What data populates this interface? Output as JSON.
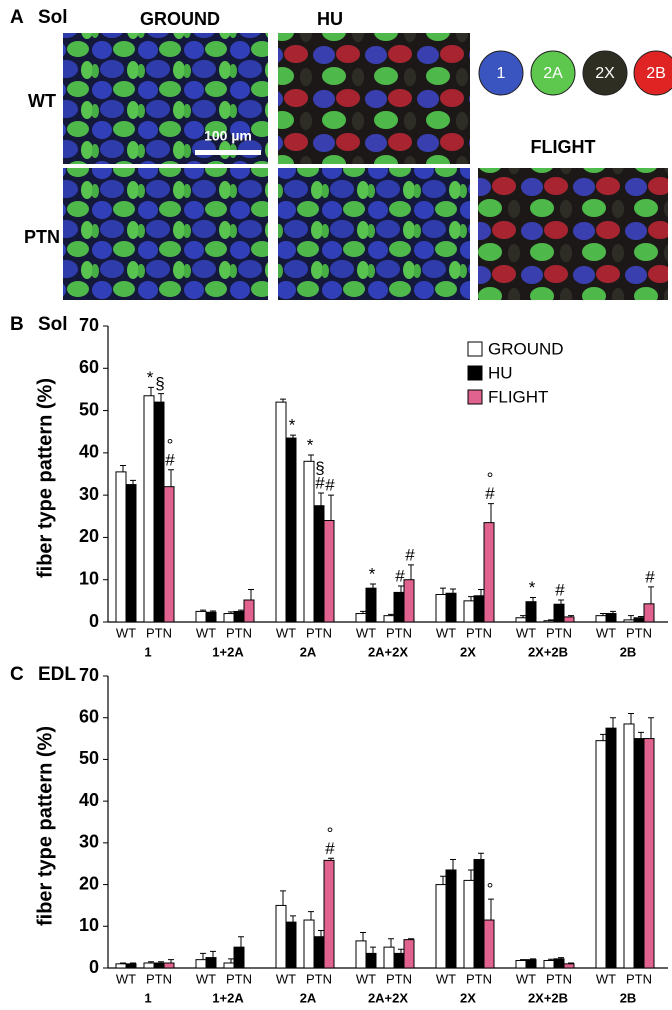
{
  "panel_a": {
    "letter": "A",
    "muscle": "Sol",
    "columns": [
      "GROUND",
      "HU",
      "FLIGHT"
    ],
    "rows": [
      "WT",
      "PTN"
    ],
    "scale_bar": "100 µm",
    "fiber_types": [
      {
        "label": "1",
        "color": "#3b55c0"
      },
      {
        "label": "2A",
        "color": "#5ec84e"
      },
      {
        "label": "2X",
        "color": "#2e2e22"
      },
      {
        "label": "2B",
        "color": "#e02424"
      }
    ]
  },
  "chart_data": [
    {
      "type": "bar",
      "panel": "B",
      "title": "Sol",
      "ylabel": "fiber type pattern (%)",
      "groups": [
        "1",
        "1+2A",
        "2A",
        "2A+2X",
        "2X",
        "2X+2B",
        "2B"
      ],
      "categories": [
        "WT",
        "PTN",
        "WT",
        "PTN",
        "WT",
        "PTN",
        "WT",
        "PTN",
        "WT",
        "PTN",
        "WT",
        "PTN",
        "WT",
        "PTN"
      ],
      "ylim": [
        0,
        70
      ],
      "yticks": [
        0,
        10,
        20,
        30,
        40,
        50,
        60,
        70
      ],
      "legend": "upper right",
      "series": [
        {
          "name": "GROUND",
          "color": "#ffffff",
          "values": [
            35.5,
            53.5,
            2.5,
            2,
            52,
            38,
            2,
            1.5,
            6.5,
            5,
            1,
            0.3,
            1.5,
            0.5
          ],
          "errors": [
            1.5,
            2,
            0.3,
            0.4,
            0.7,
            1.5,
            0.5,
            0.3,
            1.5,
            1,
            0.5,
            0.2,
            0.5,
            1
          ],
          "annotations": [
            null,
            [
              "*"
            ],
            null,
            null,
            null,
            [
              "*"
            ],
            null,
            null,
            null,
            null,
            null,
            null,
            null,
            null
          ]
        },
        {
          "name": "HU",
          "color": "#000000",
          "values": [
            32.5,
            52,
            2.3,
            2.5,
            43.5,
            27.5,
            8,
            7,
            6.8,
            6.2,
            4.8,
            4.2,
            2,
            1
          ],
          "errors": [
            1,
            2,
            0.3,
            0.3,
            0.7,
            3,
            1,
            1.5,
            1,
            1.5,
            1,
            1,
            0.5,
            0.3
          ],
          "annotations": [
            null,
            [
              "§"
            ],
            null,
            null,
            [
              "*"
            ],
            [
              "#",
              "§"
            ],
            [
              "*"
            ],
            [
              "#"
            ],
            null,
            null,
            [
              "*"
            ],
            [
              "#"
            ],
            null,
            null
          ]
        },
        {
          "name": "FLIGHT",
          "color": "#e2628f",
          "values": [
            null,
            32,
            null,
            5.2,
            null,
            24,
            null,
            10,
            null,
            23.5,
            null,
            1.2,
            null,
            4.3
          ],
          "errors": [
            null,
            4,
            null,
            2.5,
            null,
            6,
            null,
            3.5,
            null,
            4.5,
            null,
            0.3,
            null,
            4
          ],
          "annotations": [
            null,
            [
              "#",
              "°"
            ],
            null,
            null,
            null,
            [
              "#"
            ],
            null,
            [
              "#"
            ],
            null,
            [
              "#",
              "°"
            ],
            null,
            null,
            null,
            [
              "#"
            ]
          ]
        }
      ]
    },
    {
      "type": "bar",
      "panel": "C",
      "title": "EDL",
      "ylabel": "fiber type pattern (%)",
      "groups": [
        "1",
        "1+2A",
        "2A",
        "2A+2X",
        "2X",
        "2X+2B",
        "2B"
      ],
      "categories": [
        "WT",
        "PTN",
        "WT",
        "PTN",
        "WT",
        "PTN",
        "WT",
        "PTN",
        "WT",
        "PTN",
        "WT",
        "PTN",
        "WT",
        "PTN"
      ],
      "ylim": [
        0,
        70
      ],
      "yticks": [
        0,
        10,
        20,
        30,
        40,
        50,
        60,
        70
      ],
      "series": [
        {
          "name": "GROUND",
          "color": "#ffffff",
          "values": [
            1,
            1.2,
            2,
            1.2,
            15,
            11.5,
            6.5,
            5,
            20,
            21,
            1.8,
            1.8,
            54.5,
            58.5
          ],
          "errors": [
            0.2,
            0.3,
            1.5,
            1,
            3.5,
            2,
            2,
            2,
            2,
            2.5,
            0.2,
            0.3,
            1.5,
            2.5
          ],
          "annotations": [
            null,
            null,
            null,
            null,
            null,
            null,
            null,
            null,
            null,
            null,
            null,
            null,
            null,
            null
          ]
        },
        {
          "name": "HU",
          "color": "#000000",
          "values": [
            1,
            1.2,
            2.5,
            5,
            11,
            7.5,
            3.5,
            3.5,
            23.5,
            26,
            2,
            2.2,
            57.5,
            55
          ],
          "errors": [
            0.2,
            0.3,
            1.5,
            2.5,
            1.5,
            1.5,
            1.5,
            1,
            2.5,
            1.5,
            0.2,
            0.3,
            2.5,
            1.5
          ],
          "annotations": [
            null,
            null,
            null,
            null,
            null,
            null,
            null,
            null,
            null,
            null,
            null,
            null,
            null,
            null
          ]
        },
        {
          "name": "FLIGHT",
          "color": "#e2628f",
          "values": [
            null,
            1.2,
            null,
            0,
            null,
            25.8,
            null,
            6.8,
            null,
            11.5,
            null,
            1,
            null,
            55
          ],
          "errors": [
            null,
            0.8,
            null,
            0,
            null,
            0.5,
            null,
            0.2,
            null,
            5,
            null,
            0.2,
            null,
            5
          ],
          "annotations": [
            null,
            null,
            null,
            null,
            null,
            [
              "#",
              "°"
            ],
            null,
            null,
            null,
            [
              "°"
            ],
            null,
            null,
            null,
            null
          ]
        }
      ]
    }
  ]
}
